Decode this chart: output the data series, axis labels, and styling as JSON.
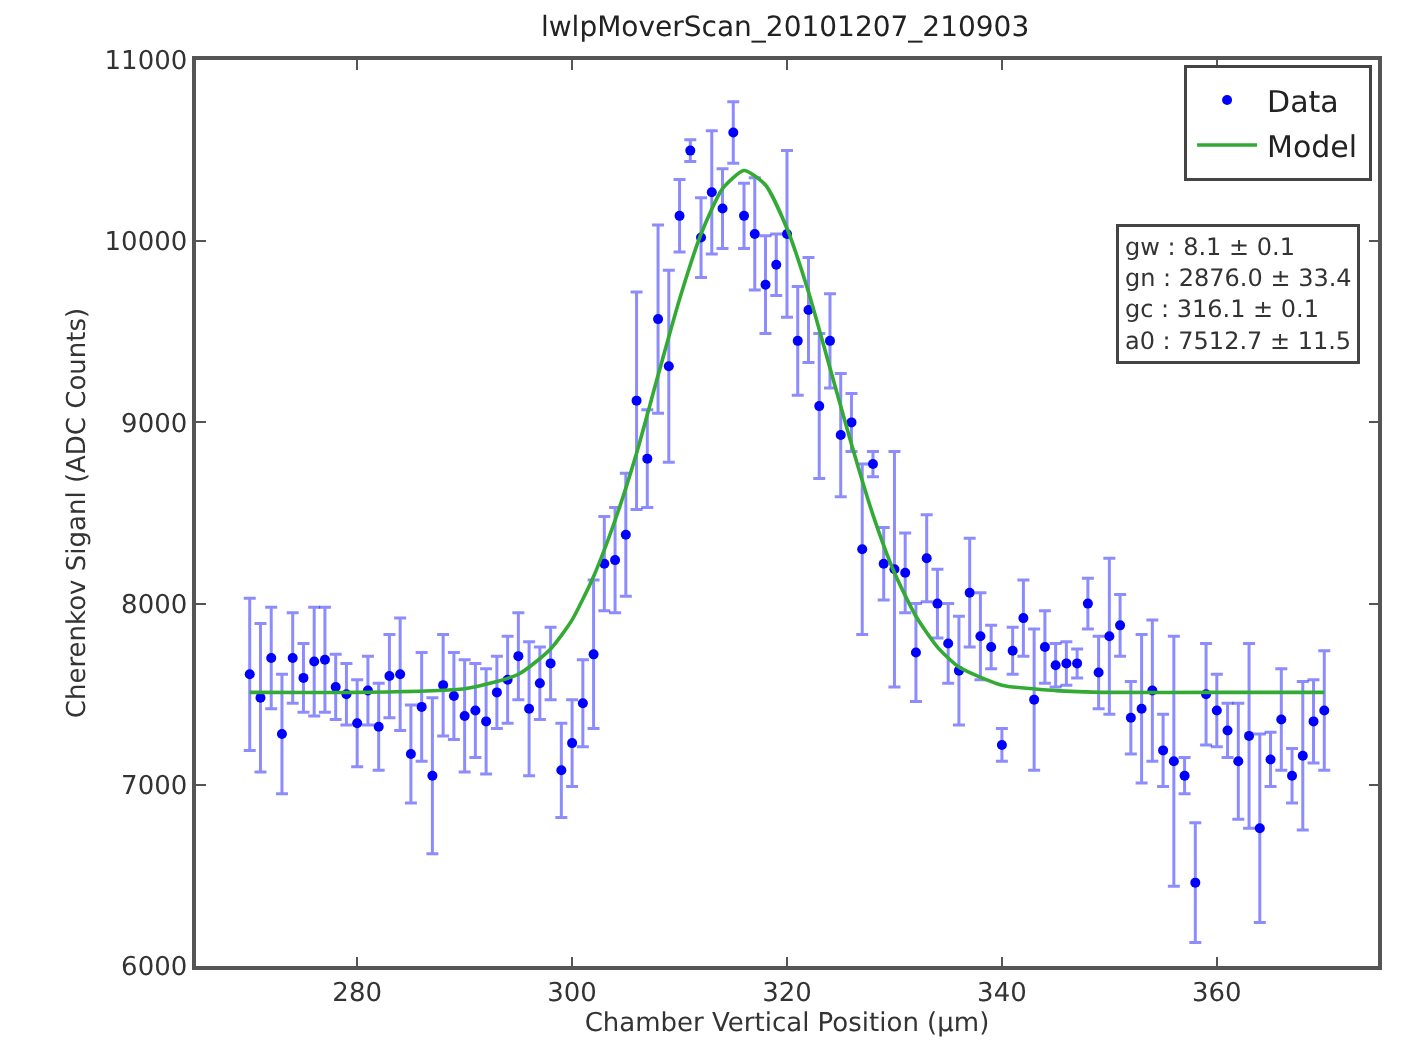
{
  "chart_data": {
    "type": "scatter",
    "title": "lwlpMoverScan_20101207_210903",
    "xlabel": "Chamber Vertical Position (μm)",
    "ylabel": "Cherenkov Siganl (ADC Counts)",
    "xlim": [
      265,
      375
    ],
    "xticks": [
      280,
      300,
      320,
      340,
      360
    ],
    "ylim": [
      6000,
      11000
    ],
    "yticks": [
      6000,
      7000,
      8000,
      9000,
      10000,
      11000
    ],
    "legend": "top right",
    "annotations": [
      "gw : 8.1 ± 0.1\ngn : 2876.0 ± 33.4\ngc : 316.1 ± 0.1\na0 : 7512.7 ± 11.5"
    ],
    "series": [
      {
        "name": "Data",
        "marker": "circle",
        "color": "#0000ff",
        "x": [
          270,
          271,
          272,
          273,
          274,
          275,
          276,
          277,
          278,
          279,
          280,
          281,
          282,
          283,
          284,
          285,
          286,
          287,
          288,
          289,
          290,
          291,
          292,
          293,
          294,
          295,
          296,
          297,
          298,
          299,
          300,
          301,
          302,
          303,
          304,
          305,
          306,
          307,
          308,
          309,
          310,
          311,
          312,
          313,
          314,
          315,
          316,
          317,
          318,
          319,
          320,
          321,
          322,
          323,
          324,
          325,
          326,
          327,
          328,
          329,
          330,
          331,
          332,
          333,
          334,
          335,
          336,
          337,
          338,
          339,
          340,
          341,
          342,
          343,
          344,
          345,
          346,
          347,
          348,
          349,
          350,
          351,
          352,
          353,
          354,
          355,
          356,
          357,
          358,
          359,
          360,
          361,
          362,
          363,
          364,
          365,
          366,
          367,
          368,
          369,
          370
        ],
        "values": [
          7610,
          7480,
          7700,
          7280,
          7700,
          7590,
          7680,
          7690,
          7540,
          7500,
          7340,
          7520,
          7320,
          7600,
          7610,
          7170,
          7430,
          7050,
          7550,
          7490,
          7380,
          7410,
          7350,
          7510,
          7580,
          7710,
          7420,
          7560,
          7670,
          7080,
          7230,
          7450,
          7720,
          8220,
          8240,
          8380,
          9120,
          8800,
          9570,
          9310,
          10140,
          10500,
          10020,
          10270,
          10180,
          10600,
          10140,
          10040,
          9760,
          9870,
          10040,
          9450,
          9620,
          9090,
          9450,
          8930,
          9000,
          8300,
          8770,
          8220,
          8190,
          8170,
          7730,
          8250,
          8000,
          7780,
          7630,
          8060,
          7820,
          7760,
          7220,
          7740,
          7920,
          7470,
          7760,
          7660,
          7670,
          7670,
          8000,
          7620,
          7820,
          7880,
          7370,
          7420,
          7520,
          7190,
          7130,
          7050,
          6460,
          7500,
          7410,
          7300,
          7130,
          7270,
          6760,
          7140,
          7360,
          7050,
          7160,
          7350,
          7410
        ],
        "errors": [
          420,
          410,
          280,
          330,
          250,
          190,
          300,
          290,
          180,
          170,
          240,
          190,
          240,
          230,
          310,
          270,
          300,
          430,
          280,
          240,
          310,
          260,
          290,
          200,
          240,
          240,
          370,
          200,
          200,
          260,
          240,
          240,
          410,
          260,
          290,
          340,
          600,
          270,
          520,
          530,
          200,
          60,
          220,
          340,
          220,
          170,
          180,
          310,
          270,
          170,
          460,
          300,
          290,
          400,
          260,
          340,
          160,
          470,
          70,
          200,
          650,
          220,
          270,
          240,
          190,
          220,
          300,
          300,
          240,
          120,
          90,
          130,
          210,
          390,
          200,
          120,
          120,
          80,
          140,
          200,
          430,
          170,
          200,
          410,
          390,
          200,
          690,
          100,
          330,
          280,
          200,
          150,
          320,
          510,
          520,
          150,
          280,
          150,
          410,
          230,
          330
        ]
      },
      {
        "name": "Model",
        "type": "line",
        "marker": "none",
        "line_style": "solid",
        "color": "#33aa33",
        "x": [
          270,
          280,
          290,
          295,
          298,
          300,
          302,
          304,
          306,
          308,
          310,
          312,
          314,
          316,
          318,
          320,
          322,
          324,
          326,
          328,
          330,
          332,
          334,
          336,
          340,
          345,
          350,
          360,
          370
        ],
        "values": [
          7510,
          7510,
          7530,
          7610,
          7750,
          7910,
          8150,
          8460,
          8830,
          9260,
          9680,
          10040,
          10290,
          10390,
          10310,
          10070,
          9720,
          9300,
          8880,
          8490,
          8170,
          7930,
          7760,
          7650,
          7550,
          7520,
          7510,
          7510,
          7510
        ]
      }
    ]
  }
}
